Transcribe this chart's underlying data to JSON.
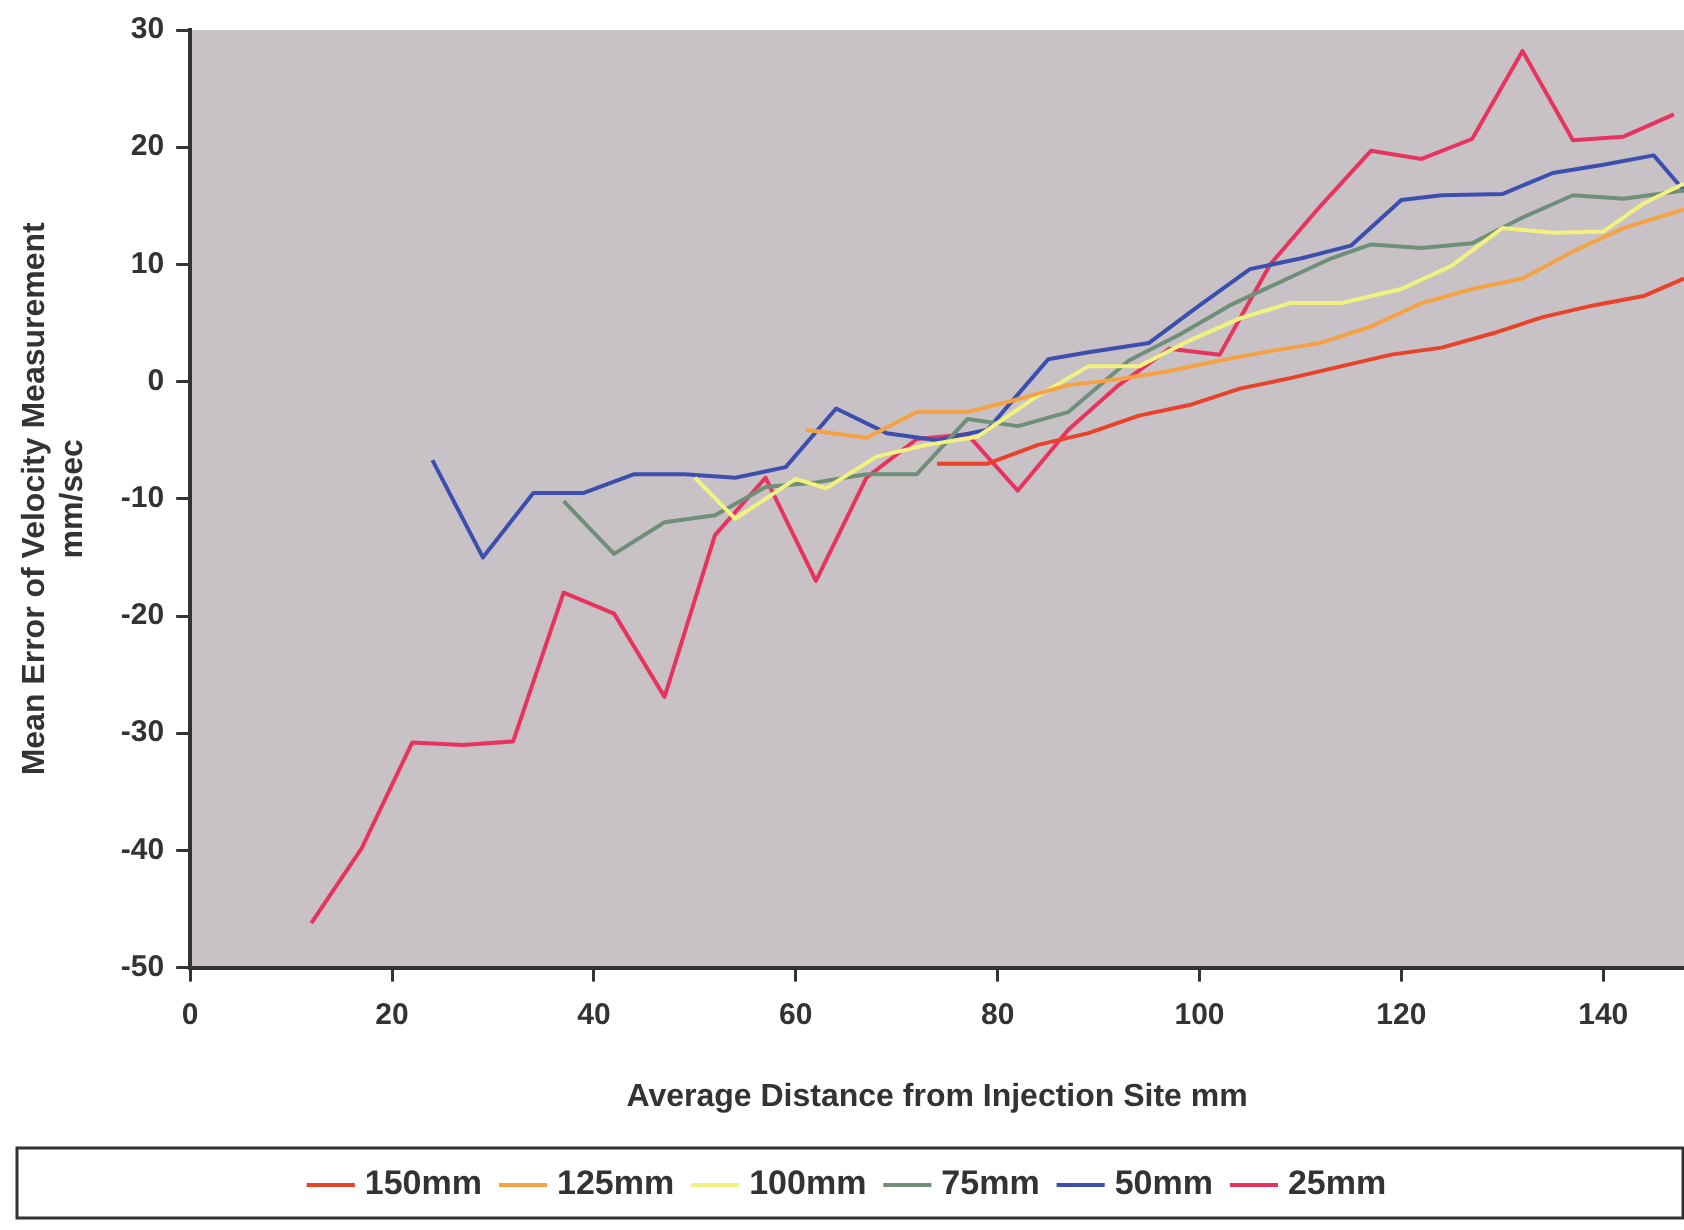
{
  "chart_data": {
    "type": "line",
    "xlabel": "Average Distance from Injection Site mm",
    "ylabel": "Mean Error of Velocity Measurement\nmm/sec",
    "xlim": [
      0,
      148
    ],
    "xticks": [
      0,
      20,
      40,
      60,
      80,
      100,
      120,
      140
    ],
    "ylim": [
      -50,
      30
    ],
    "yticks": [
      -50,
      -40,
      -30,
      -20,
      -10,
      0,
      10,
      20,
      30
    ],
    "legend": "bottom",
    "marker": "none",
    "line_style": "solid",
    "series": [
      {
        "name": "150mm",
        "color": "#e8432a",
        "x": [
          74,
          79,
          84,
          89,
          94,
          99,
          104,
          109,
          114,
          119,
          124,
          129,
          134,
          139,
          144,
          148
        ],
        "values": [
          -7,
          -7,
          -5.4,
          -4.4,
          -2.9,
          -2,
          -0.6,
          0.3,
          1.3,
          2.3,
          2.9,
          4.1,
          5.5,
          6.5,
          7.3,
          8.8
        ]
      },
      {
        "name": "125mm",
        "color": "#f4a244",
        "x": [
          61,
          67,
          72,
          77,
          82,
          87,
          92,
          97,
          102,
          107,
          112,
          117,
          122,
          127,
          132,
          137,
          142,
          148
        ],
        "values": [
          -4.1,
          -4.8,
          -2.6,
          -2.6,
          -1.5,
          -0.3,
          0.2,
          0.9,
          1.8,
          2.6,
          3.3,
          4.7,
          6.7,
          7.9,
          8.8,
          11.1,
          13.1,
          14.7
        ]
      },
      {
        "name": "100mm",
        "color": "#f2f27e",
        "x": [
          50,
          54,
          60,
          63,
          68,
          73,
          78,
          84,
          89,
          94,
          99,
          104,
          109,
          114,
          120,
          125,
          130,
          135,
          140,
          144,
          148
        ],
        "values": [
          -8.2,
          -11.7,
          -8.3,
          -9.1,
          -6.4,
          -5.4,
          -4.7,
          -1.2,
          1.3,
          1.3,
          3.5,
          5.4,
          6.7,
          6.7,
          7.9,
          9.9,
          13.1,
          12.7,
          12.8,
          15.2,
          16.9
        ]
      },
      {
        "name": "75mm",
        "color": "#6f8f78",
        "x": [
          37,
          42,
          47,
          52,
          57,
          62,
          67,
          72,
          77,
          82,
          87,
          93,
          98,
          103,
          108,
          113,
          117,
          122,
          127,
          132,
          137,
          142,
          148
        ],
        "values": [
          -10.2,
          -14.7,
          -12,
          -11.4,
          -9,
          -8.6,
          -7.9,
          -7.9,
          -3.2,
          -3.8,
          -2.6,
          1.8,
          4,
          6.5,
          8.5,
          10.5,
          11.7,
          11.4,
          11.8,
          14,
          15.9,
          15.6,
          16.3
        ]
      },
      {
        "name": "50mm",
        "color": "#3d4fae",
        "x": [
          24,
          29,
          34,
          39,
          44,
          49,
          54,
          59,
          64,
          69,
          74,
          79,
          85,
          89,
          95,
          100,
          105,
          110,
          115,
          120,
          124,
          130,
          135,
          140,
          145,
          148
        ],
        "values": [
          -6.7,
          -15,
          -9.5,
          -9.5,
          -7.9,
          -7.9,
          -8.2,
          -7.3,
          -2.3,
          -4.4,
          -5,
          -4.1,
          1.9,
          2.5,
          3.3,
          6.5,
          9.6,
          10.5,
          11.6,
          15.5,
          15.9,
          16,
          17.8,
          18.5,
          19.3,
          16.3
        ]
      },
      {
        "name": "25mm",
        "color": "#e8335f",
        "x": [
          12,
          17,
          22,
          27,
          32,
          37,
          42,
          47,
          52,
          57,
          62,
          67,
          72,
          77,
          82,
          87,
          92,
          97,
          102,
          107,
          112,
          117,
          122,
          127,
          132,
          137,
          142,
          147
        ],
        "values": [
          -46.2,
          -39.8,
          -30.8,
          -31,
          -30.7,
          -18,
          -19.8,
          -26.9,
          -13.1,
          -8.2,
          -17,
          -8.2,
          -4.9,
          -4.5,
          -9.3,
          -4.1,
          -0.3,
          2.8,
          2.3,
          10,
          15,
          19.7,
          19,
          20.7,
          28.2,
          20.6,
          20.9,
          22.8
        ]
      }
    ]
  }
}
